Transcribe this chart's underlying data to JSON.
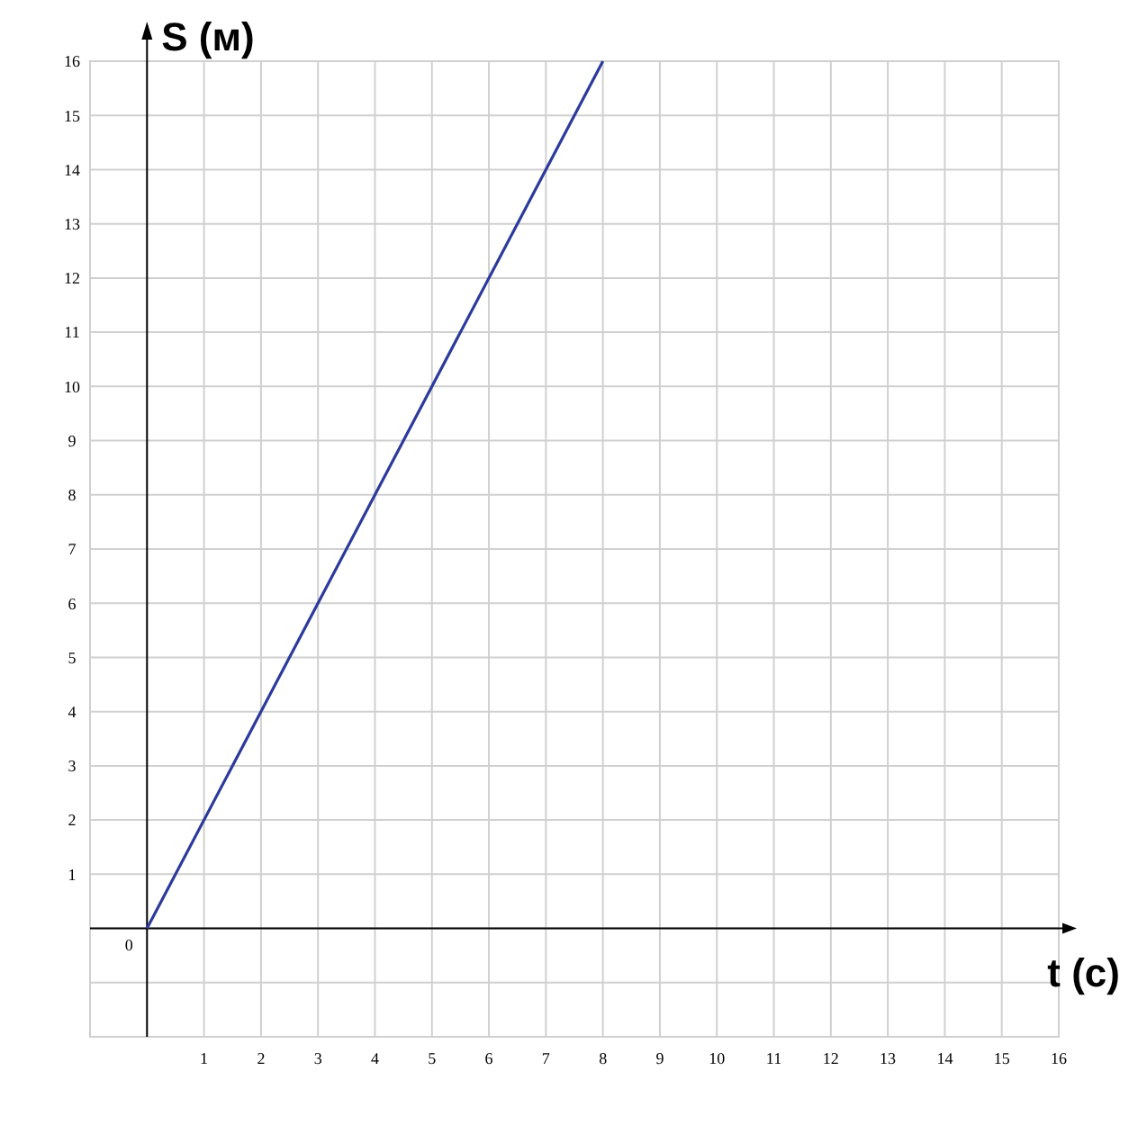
{
  "chart_data": {
    "type": "line",
    "xlabel": "t (c)",
    "ylabel": "S (м)",
    "x": [
      0,
      8
    ],
    "series": [
      {
        "color": "#2b3a9b",
        "values": [
          0,
          16
        ]
      }
    ],
    "xlim": [
      -1,
      16
    ],
    "ylim": [
      -2,
      16
    ],
    "annotations": [
      {
        "text": "0",
        "x": 0,
        "y": 0
      }
    ],
    "xticks": [
      {
        "value": -1,
        "label": null
      },
      1,
      2,
      3,
      4,
      5,
      6,
      7,
      8,
      9,
      10,
      11,
      12,
      13,
      14,
      15,
      16
    ],
    "yticks": [
      {
        "value": -2,
        "label": null
      },
      {
        "value": -1,
        "label": null
      },
      {
        "value": 0,
        "label": null
      },
      1,
      2,
      3,
      4,
      5,
      6,
      7,
      8,
      9,
      10,
      11,
      12,
      13,
      14,
      15,
      16
    ],
    "grid": true,
    "marker": "none",
    "line_style": "solid"
  }
}
